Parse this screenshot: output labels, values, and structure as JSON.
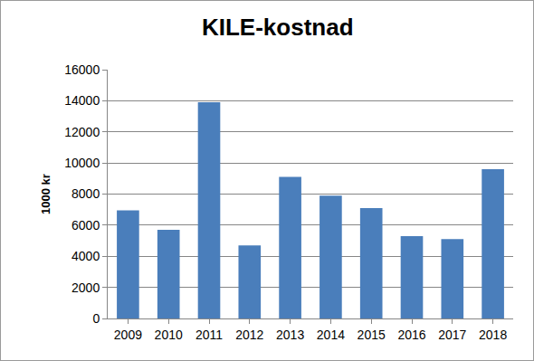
{
  "chart_data": {
    "type": "bar",
    "title": "KILE-kostnad",
    "y_label": "1000 kr",
    "categories": [
      "2009",
      "2010",
      "2011",
      "2012",
      "2013",
      "2014",
      "2015",
      "2016",
      "2017",
      "2018"
    ],
    "values": [
      6950,
      5700,
      13900,
      4700,
      9100,
      7900,
      7100,
      5300,
      5100,
      9600
    ],
    "color": "#4a7ebb",
    "ylim": [
      0,
      16000
    ],
    "yticks": [
      0,
      2000,
      4000,
      6000,
      8000,
      10000,
      12000,
      14000,
      16000
    ],
    "grid": true
  }
}
